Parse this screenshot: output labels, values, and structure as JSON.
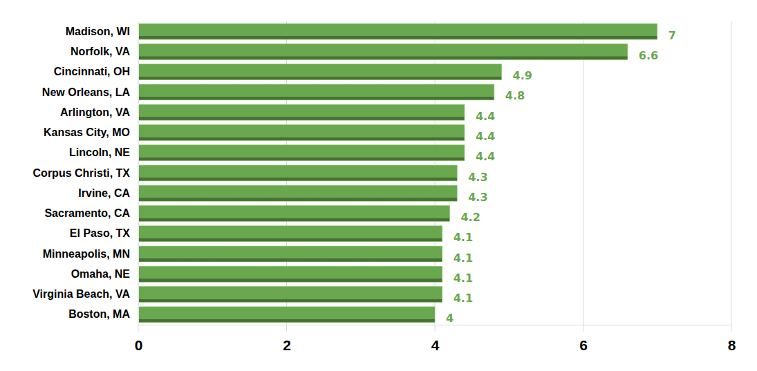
{
  "chart_data": {
    "type": "bar",
    "orientation": "horizontal",
    "categories": [
      "Madison, WI",
      "Norfolk, VA",
      "Cincinnati, OH",
      "New Orleans, LA",
      "Arlington, VA",
      "Kansas City, MO",
      "Lincoln, NE",
      "Corpus Christi, TX",
      "Irvine, CA",
      "Sacramento, CA",
      "El Paso, TX",
      "Minneapolis, MN",
      "Omaha, NE",
      "Virginia Beach, VA",
      "Boston, MA"
    ],
    "values": [
      7,
      6.6,
      4.9,
      4.8,
      4.4,
      4.4,
      4.4,
      4.3,
      4.3,
      4.2,
      4.1,
      4.1,
      4.1,
      4.1,
      4
    ],
    "color": "#6aa84f",
    "xlim": [
      0,
      8
    ],
    "xticks": [
      0,
      2,
      4,
      6,
      8
    ],
    "grid": true,
    "data_labels": true
  }
}
